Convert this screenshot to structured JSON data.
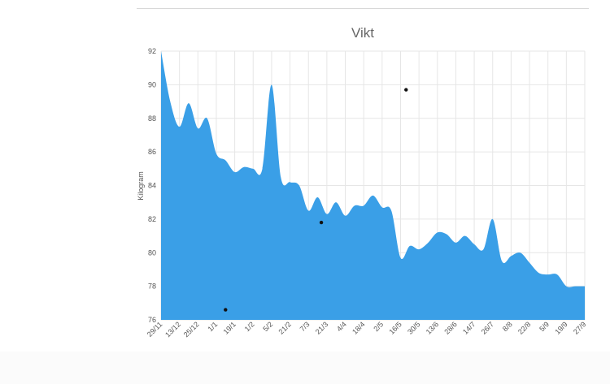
{
  "chart_data": {
    "type": "area",
    "title": "Vikt",
    "xlabel": "",
    "ylabel": "Kilogram",
    "ylim": [
      76,
      92
    ],
    "yticks": [
      76,
      78,
      80,
      82,
      84,
      86,
      88,
      90,
      92
    ],
    "grid": true,
    "fill_color": "#3a9fe7",
    "categories": [
      "29/11",
      "13/12",
      "25/12",
      "1/1",
      "19/1",
      "1/2",
      "5/2",
      "21/2",
      "7/3",
      "21/3",
      "4/4",
      "18/4",
      "2/5",
      "16/5",
      "30/5",
      "13/6",
      "28/6",
      "14/7",
      "26/7",
      "8/8",
      "22/8",
      "5/9",
      "19/9",
      "27/9"
    ],
    "x": [
      0,
      0.5,
      1,
      1.5,
      2,
      2.5,
      3,
      3.5,
      4,
      4.5,
      5,
      5.5,
      6,
      6.5,
      7,
      7.5,
      8,
      8.5,
      9,
      9.5,
      10,
      10.5,
      11,
      11.5,
      12,
      12.5,
      13,
      13.5,
      14,
      14.5,
      15,
      15.5,
      16,
      16.5,
      17,
      17.5,
      18,
      18.5,
      19,
      19.5,
      20,
      20.5,
      21,
      21.5,
      22,
      22.5,
      23
    ],
    "values": [
      92,
      89,
      87.5,
      88.9,
      87.4,
      88,
      85.9,
      85.5,
      84.8,
      85.1,
      85,
      85,
      90,
      84.5,
      84.2,
      84,
      82.5,
      83.3,
      82.3,
      83,
      82.2,
      82.8,
      82.8,
      83.4,
      82.7,
      82.5,
      79.7,
      80.4,
      80.2,
      80.6,
      81.2,
      81.1,
      80.6,
      81,
      80.5,
      80.2,
      82,
      79.5,
      79.8,
      80,
      79.4,
      78.8,
      78.7,
      78.7,
      78,
      78,
      78
    ],
    "points": [
      {
        "x": 3.5,
        "y": 76.6
      },
      {
        "x": 8.7,
        "y": 81.8
      },
      {
        "x": 13.3,
        "y": 89.7
      }
    ]
  }
}
